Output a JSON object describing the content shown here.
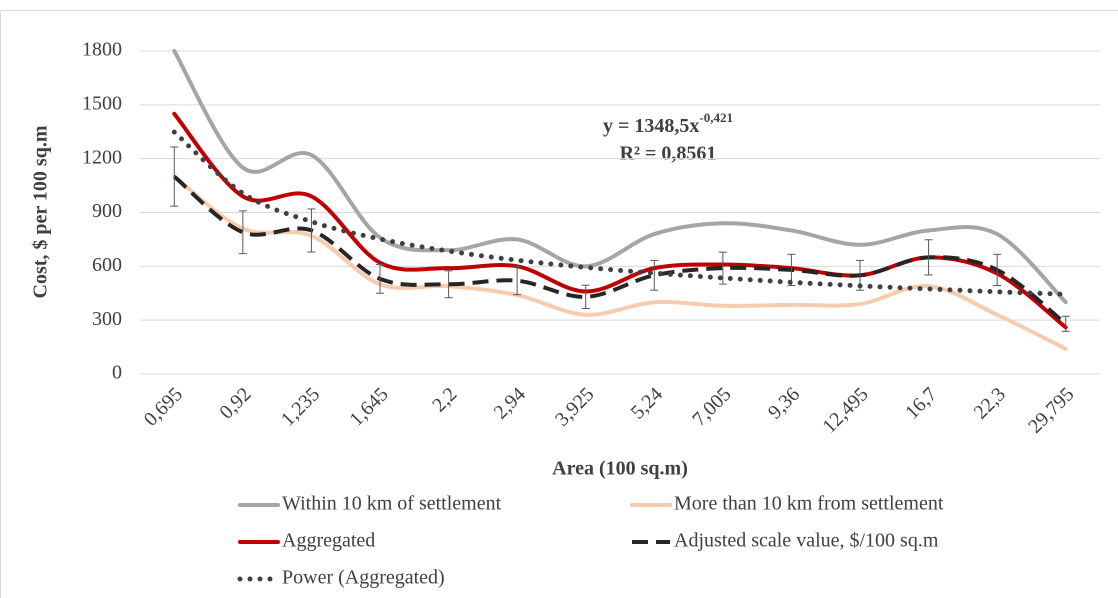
{
  "chart_data": {
    "type": "line",
    "y_axis_label": "Cost, $ per 100 sq.m",
    "x_axis_label": "Area (100 sq.m)",
    "categories": [
      "0,695",
      "0,92",
      "1,235",
      "1,645",
      "2,2",
      "2,94",
      "3,925",
      "5,24",
      "7,005",
      "9,36",
      "12,495",
      "16,7",
      "22,3",
      "29,795"
    ],
    "ylim": [
      0,
      1800
    ],
    "yticks": [
      0,
      300,
      600,
      900,
      1200,
      1500,
      1800
    ],
    "grid": true,
    "smooth": true,
    "legend": "bottom",
    "annotation": {
      "equation": "y = 1348,5x",
      "exponent": "-0,421",
      "r2": "R² = 0,8561"
    },
    "series": [
      {
        "name": "Within 10 km of settlement",
        "color": "#a5a5a5",
        "style": "solid",
        "values": [
          1800,
          1150,
          1220,
          760,
          690,
          750,
          600,
          780,
          840,
          800,
          720,
          800,
          780,
          400
        ]
      },
      {
        "name": "More than 10 km from settlement",
        "color": "#f8cbad",
        "style": "solid",
        "values": [
          1100,
          810,
          770,
          500,
          490,
          440,
          330,
          400,
          380,
          385,
          390,
          490,
          330,
          140
        ]
      },
      {
        "name": "Aggregated",
        "color": "#c00000",
        "style": "solid",
        "values": [
          1450,
          990,
          990,
          620,
          590,
          600,
          460,
          590,
          610,
          590,
          550,
          650,
          560,
          260
        ]
      },
      {
        "name": "Adjusted scale value, $/100 sq.m",
        "color": "#262626",
        "style": "dashed",
        "values": [
          1100,
          790,
          800,
          530,
          500,
          520,
          430,
          550,
          590,
          580,
          550,
          650,
          580,
          280
        ],
        "errors": [
          165,
          119,
          120,
          80,
          75,
          78,
          65,
          83,
          89,
          87,
          83,
          98,
          87,
          42
        ]
      },
      {
        "name": "Power (Aggregated)",
        "color": "#404040",
        "style": "dotted",
        "values": [
          1348,
          1007,
          849,
          752,
          685,
          634,
          594,
          562,
          535,
          511,
          491,
          474,
          458,
          444
        ]
      }
    ]
  }
}
